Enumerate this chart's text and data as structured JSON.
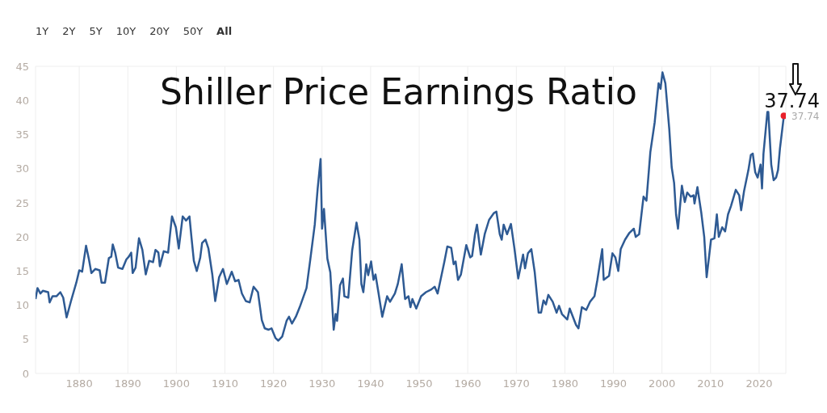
{
  "chart_data": {
    "type": "line",
    "title": "Shiller Price Earnings Ratio",
    "annotations": [
      "1Y",
      "2Y",
      "5Y",
      "10Y",
      "20Y",
      "50Y",
      "All",
      {
        "text": "37.74",
        "x": 2025.1,
        "y": 37.74
      }
    ],
    "xlim": [
      1871,
      2025.5
    ],
    "xticks": [
      1880,
      1890,
      1900,
      1910,
      1920,
      1930,
      1940,
      1950,
      1960,
      1970,
      1980,
      1990,
      2000,
      2010,
      2020
    ],
    "ylim": [
      0,
      45
    ],
    "yticks": [
      0,
      5,
      10,
      15,
      20,
      25,
      30,
      35,
      40,
      45
    ],
    "grid": true,
    "series": [
      {
        "color": "#2e5a93",
        "x": [
          1871.0,
          1871.4,
          1872,
          1872.5,
          1873.6,
          1873.9,
          1874.5,
          1875.3,
          1876.1,
          1876.7,
          1877.4,
          1878.3,
          1879.4,
          1880,
          1880.6,
          1881.4,
          1882,
          1882.5,
          1883.3,
          1884.2,
          1884.6,
          1885.3,
          1886.1,
          1886.6,
          1886.9,
          1887.4,
          1888,
          1888.9,
          1889.7,
          1890.2,
          1890.7,
          1891,
          1891.6,
          1892.3,
          1893,
          1893.7,
          1894.4,
          1895.2,
          1895.7,
          1896.3,
          1896.6,
          1897.4,
          1898.3,
          1898.7,
          1899.1,
          1899.9,
          1900.5,
          1901.3,
          1902,
          1902.7,
          1903.1,
          1903.6,
          1904.2,
          1904.9,
          1905.3,
          1906,
          1906.6,
          1907.4,
          1908,
          1908.8,
          1909.6,
          1910.4,
          1911.4,
          1912.1,
          1912.8,
          1913.5,
          1914.3,
          1915.1,
          1915.9,
          1916.8,
          1917.6,
          1918.2,
          1919,
          1919.6,
          1920.4,
          1921,
          1921.8,
          1922.7,
          1923.2,
          1923.8,
          1924.6,
          1925.4,
          1926.2,
          1926.8,
          1927.6,
          1928.5,
          1929.1,
          1929.7,
          1930,
          1930.4,
          1931.1,
          1931.7,
          1932.4,
          1932.8,
          1933.1,
          1933.7,
          1934.3,
          1934.6,
          1935.4,
          1936.2,
          1937.1,
          1937.7,
          1938.1,
          1938.5,
          1939.1,
          1939.5,
          1940.1,
          1940.6,
          1941.0,
          1941.6,
          1942.4,
          1943.4,
          1944,
          1945,
          1945.6,
          1946.4,
          1947.1,
          1947.8,
          1948.2,
          1948.6,
          1949.4,
          1950.4,
          1951.4,
          1952.5,
          1953.2,
          1953.8,
          1954.4,
          1955.2,
          1955.8,
          1956.6,
          1957.1,
          1957.5,
          1958,
          1958.6,
          1959.7,
          1960.5,
          1960.9,
          1961.5,
          1961.9,
          1962.7,
          1963.5,
          1964.4,
          1965.4,
          1965.9,
          1966.6,
          1967,
          1967.4,
          1968.1,
          1968.9,
          1969.6,
          1970.4,
          1971.4,
          1971.8,
          1972.4,
          1973.1,
          1973.8,
          1974.6,
          1975.1,
          1975.6,
          1976.1,
          1976.6,
          1977.5,
          1978.3,
          1978.8,
          1979.4,
          1980.5,
          1981,
          1982.3,
          1982.8,
          1983.5,
          1984.4,
          1985.2,
          1986.1,
          1986.7,
          1987.2,
          1987.7,
          1988,
          1989.1,
          1989.8,
          1990.4,
          1991,
          1991.5,
          1992.4,
          1993.3,
          1994.2,
          1994.6,
          1995.3,
          1996.2,
          1996.8,
          1997.6,
          1998.5,
          1999.3,
          1999.7,
          2000.1,
          2000.7,
          2001.5,
          2002,
          2002.5,
          2002.9,
          2003.3,
          2004.1,
          2004.7,
          2005.2,
          2005.9,
          2006.5,
          2006.7,
          2007.3,
          2008.1,
          2008.7,
          2009.2,
          2010.1,
          2010.8,
          2011.3,
          2011.7,
          2012.4,
          2013,
          2013.6,
          2014.2,
          2015.2,
          2015.9,
          2016.3,
          2016.9,
          2017.8,
          2018.3,
          2018.7,
          2019.2,
          2019.7,
          2020.3,
          2020.6,
          2020.9,
          2021.7,
          2021.9,
          2022.5,
          2023,
          2023.5,
          2023.9,
          2024.3,
          2025.1
        ],
        "values": [
          10.9,
          12.5,
          11.7,
          12.1,
          11.9,
          10.4,
          11.3,
          11.3,
          11.9,
          11.1,
          8.2,
          10.6,
          13.3,
          15.1,
          14.9,
          18.7,
          16.7,
          14.7,
          15.3,
          15.1,
          13.3,
          13.3,
          16.9,
          17.1,
          18.9,
          17.7,
          15.5,
          15.3,
          16.7,
          17.1,
          17.7,
          14.7,
          15.5,
          19.8,
          18.1,
          14.5,
          16.5,
          16.3,
          18.1,
          17.7,
          15.7,
          17.9,
          17.7,
          20.4,
          23.0,
          21.4,
          18.3,
          23.0,
          22.4,
          23.0,
          20.0,
          16.5,
          15.0,
          16.9,
          19.1,
          19.6,
          18.3,
          14.5,
          10.6,
          14.1,
          15.3,
          13.1,
          14.9,
          13.5,
          13.7,
          11.7,
          10.6,
          10.4,
          12.7,
          11.9,
          7.8,
          6.6,
          6.4,
          6.6,
          5.2,
          4.8,
          5.4,
          7.7,
          8.3,
          7.3,
          8.3,
          9.7,
          11.3,
          12.5,
          16.8,
          21.8,
          27.1,
          31.4,
          21.2,
          24.1,
          16.8,
          14.8,
          6.4,
          8.7,
          7.7,
          12.9,
          13.9,
          11.3,
          11.1,
          18.0,
          22.1,
          19.6,
          13.1,
          11.9,
          16.0,
          14.4,
          16.4,
          13.7,
          14.5,
          11.9,
          8.3,
          11.3,
          10.5,
          11.7,
          13.1,
          16.0,
          10.9,
          11.3,
          9.7,
          10.9,
          9.5,
          11.3,
          11.9,
          12.3,
          12.7,
          11.7,
          13.7,
          16.4,
          18.6,
          18.4,
          16.0,
          16.4,
          13.7,
          14.5,
          18.8,
          17.0,
          17.2,
          20.4,
          21.8,
          17.4,
          20.4,
          22.5,
          23.5,
          23.7,
          20.4,
          19.6,
          21.8,
          20.4,
          21.9,
          18.4,
          13.9,
          17.4,
          15.4,
          17.6,
          18.2,
          14.8,
          8.9,
          8.9,
          10.7,
          10.1,
          11.5,
          10.5,
          8.9,
          9.9,
          8.7,
          7.9,
          9.5,
          7.1,
          6.6,
          9.7,
          9.3,
          10.5,
          11.3,
          13.7,
          16.0,
          18.2,
          13.7,
          14.3,
          17.6,
          17.0,
          15.0,
          18.2,
          19.6,
          20.6,
          21.2,
          20.0,
          20.4,
          25.9,
          25.3,
          32.4,
          36.8,
          42.5,
          41.7,
          44.1,
          42.5,
          35.8,
          30.2,
          27.9,
          23.3,
          21.2,
          27.5,
          25.1,
          26.5,
          25.9,
          26.1,
          24.9,
          27.3,
          23.5,
          20.0,
          14.1,
          19.6,
          19.8,
          23.3,
          20.0,
          21.4,
          20.8,
          23.3,
          24.5,
          26.9,
          26.1,
          23.9,
          26.7,
          29.8,
          32.0,
          32.2,
          29.5,
          28.7,
          30.6,
          27.1,
          32.2,
          38.3,
          38.3,
          30.6,
          28.3,
          28.7,
          29.8,
          33.0,
          37.74
        ]
      },
      {
        "type": "scatter",
        "color": "#e8202a",
        "x": [
          2025.1
        ],
        "values": [
          37.74
        ],
        "value_labels": [
          "37.74"
        ]
      }
    ]
  }
}
